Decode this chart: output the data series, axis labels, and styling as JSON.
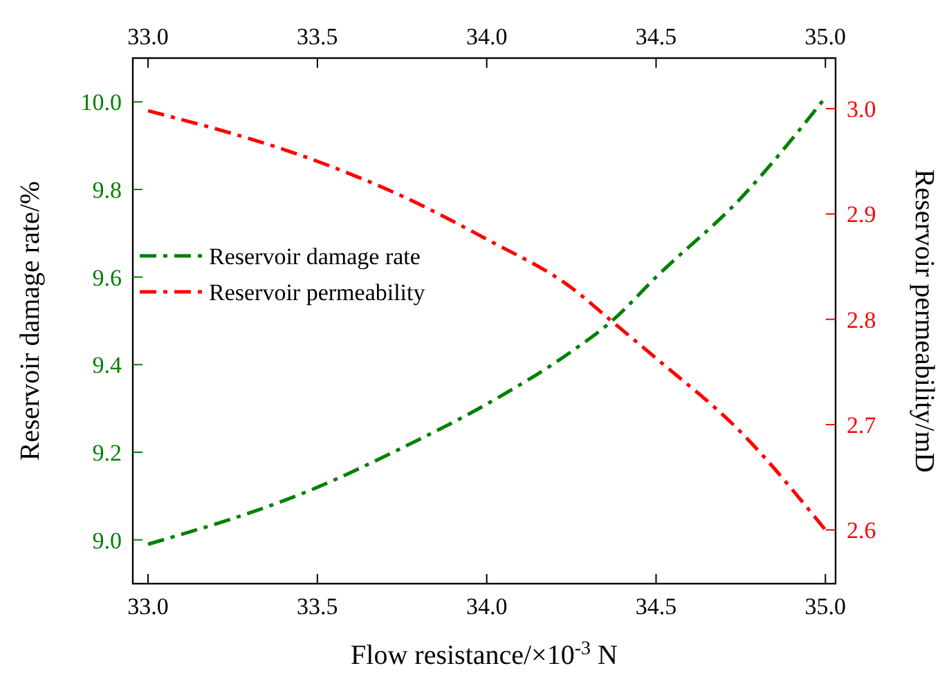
{
  "chart_data": {
    "type": "line",
    "xlabel": "Flow resistance/×10$^{-3}$ N",
    "ylabel": "Reservoir damage rate/%",
    "y2label": "Reservoir permeability/mD",
    "xlim": [
      32.955,
      35.03
    ],
    "xticks": [
      {
        "value": 33,
        "label": "33.0"
      },
      33.5,
      {
        "value": 34,
        "label": "34.0"
      },
      34.5,
      {
        "value": 35,
        "label": "35.0"
      }
    ],
    "x2lim": [
      32.955,
      35.03
    ],
    "x2ticks": [
      {
        "value": 33,
        "label": "33.0"
      },
      33.5,
      {
        "value": 34,
        "label": "34.0"
      },
      34.5,
      {
        "value": 35,
        "label": "35.0"
      }
    ],
    "ylim": [
      8.9,
      10.1
    ],
    "yticks": [
      {
        "value": 9,
        "label": "9.0"
      },
      9.2,
      9.4,
      9.6,
      9.8,
      {
        "value": 10,
        "label": "10.0"
      }
    ],
    "y2lim": [
      2.549,
      3.048
    ],
    "y2ticks": [
      2.6,
      2.7,
      2.8,
      2.9,
      {
        "value": 3,
        "label": "3.0"
      }
    ],
    "legend": "left",
    "line_style": "dashed",
    "grid": false,
    "series": [
      {
        "name": "Reservoir damage rate",
        "color": "#008000",
        "x": [
          33,
          33.5,
          33.75,
          34,
          34.25,
          34.37,
          34.5,
          34.75,
          35
        ],
        "values": [
          8.99,
          9.12,
          9.21,
          9.31,
          9.43,
          9.5,
          9.6,
          9.78,
          10.01
        ]
      },
      {
        "name": "Reservoir permeability",
        "color": "#ff0000",
        "axis": "y2",
        "x": [
          33,
          33.5,
          33.75,
          34,
          34.25,
          34.37,
          34.5,
          34.75,
          35
        ],
        "values": [
          2.998,
          2.95,
          2.917,
          2.876,
          2.83,
          2.798,
          2.763,
          2.693,
          2.6
        ]
      }
    ]
  }
}
